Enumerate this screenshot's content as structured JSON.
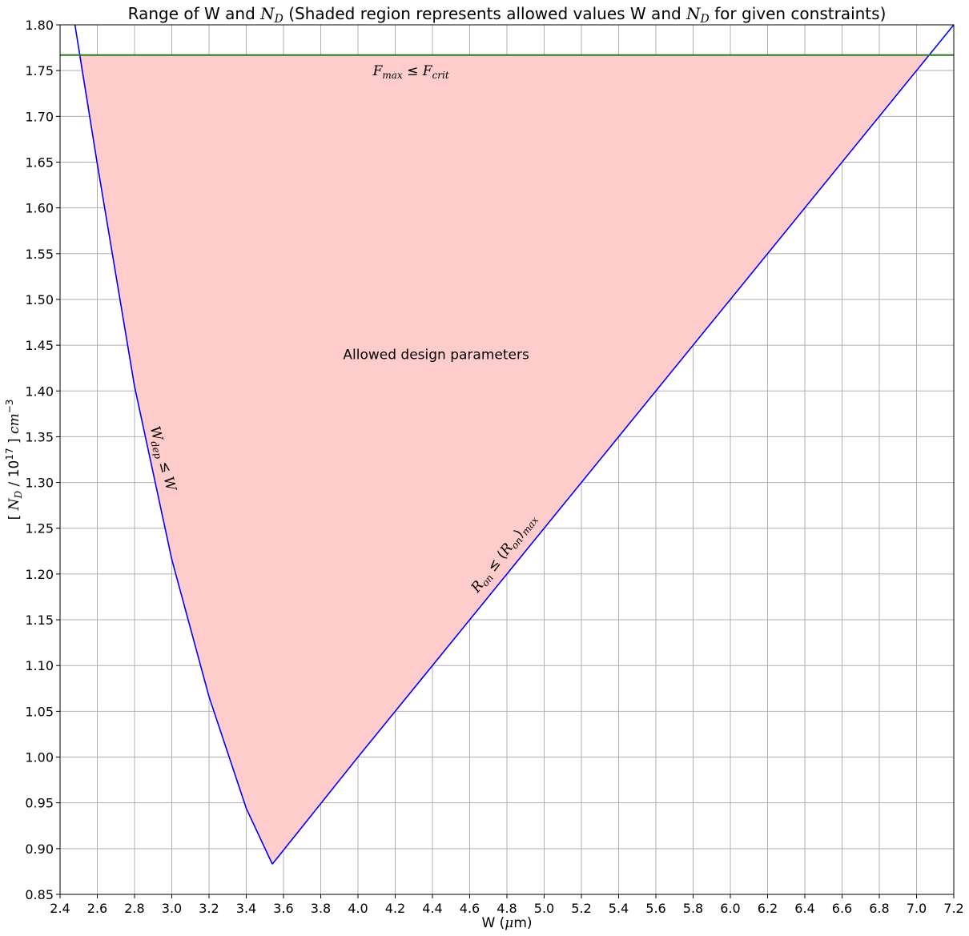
{
  "chart_data": {
    "type": "line",
    "title": {
      "before": "Range of W and ",
      "sym1": "N",
      "sub1": "D",
      "middle": " (Shaded region represents allowed values W and ",
      "sym2": "N",
      "sub2": "D",
      "after": " for given constraints)"
    },
    "xlabel": {
      "text": "W (",
      "mu": "μ",
      "tail": "m)"
    },
    "ylabel": {
      "open": "[ ",
      "sym": "N",
      "sub": "D",
      "mid": " / 10",
      "sup": "17",
      "close": " ] ",
      "unit": "cm",
      "unit_sup": "−3"
    },
    "xlim": [
      2.4,
      7.2
    ],
    "ylim": [
      0.85,
      1.8
    ],
    "x_ticks": [
      "2.4",
      "2.6",
      "2.8",
      "3.0",
      "3.2",
      "3.4",
      "3.6",
      "3.8",
      "4.0",
      "4.2",
      "4.4",
      "4.6",
      "4.8",
      "5.0",
      "5.2",
      "5.4",
      "5.6",
      "5.8",
      "6.0",
      "6.2",
      "6.4",
      "6.6",
      "6.8",
      "7.0",
      "7.2"
    ],
    "y_ticks": [
      "0.85",
      "0.90",
      "0.95",
      "1.00",
      "1.05",
      "1.10",
      "1.15",
      "1.20",
      "1.25",
      "1.30",
      "1.35",
      "1.40",
      "1.45",
      "1.50",
      "1.55",
      "1.60",
      "1.65",
      "1.70",
      "1.75",
      "1.80"
    ],
    "grid": true,
    "colors": {
      "constraint": "#0000ff",
      "fmax": "#2e7d1e",
      "region": "#ffcccc"
    },
    "series": [
      {
        "key": "wdep",
        "x": [
          2.48,
          2.6,
          2.8,
          3.0,
          3.2,
          3.4,
          3.54
        ],
        "y": [
          1.8,
          1.648,
          1.405,
          1.216,
          1.066,
          0.944,
          0.883
        ]
      },
      {
        "key": "ron",
        "x": [
          3.54,
          4.0,
          5.0,
          6.0,
          7.0,
          7.2
        ],
        "y": [
          0.883,
          1.0,
          1.25,
          1.5,
          1.75,
          1.8
        ]
      },
      {
        "key": "fmax",
        "x": [
          2.4,
          7.2
        ],
        "y": [
          1.767,
          1.767
        ]
      }
    ],
    "region": {
      "x": [
        2.5,
        2.6,
        2.8,
        3.0,
        3.2,
        3.4,
        3.54,
        4.0,
        5.0,
        6.0,
        7.0,
        7.068
      ],
      "y": [
        1.767,
        1.648,
        1.405,
        1.216,
        1.066,
        0.944,
        0.883,
        1.0,
        1.25,
        1.5,
        1.75,
        1.767
      ]
    },
    "annotations": {
      "fmax": {
        "a": "F",
        "a_sub": "max",
        "op": " ≤ ",
        "b": "F",
        "b_sub": "crit",
        "x": 4.08,
        "y": 1.745
      },
      "region": {
        "text": "Allowed design parameters",
        "x": 3.92,
        "y": 1.435
      },
      "wdep": {
        "a": "W",
        "a_sub": "dep",
        "op": " ≤ ",
        "b": "W",
        "x": 2.93,
        "y": 1.325,
        "angle": 75
      },
      "ron": {
        "a": "R",
        "a_sub": "on",
        "op": " ≤ (",
        "b": "R",
        "b_sub": "on",
        "close": ")",
        "c_sub": "max",
        "x": 4.8,
        "y": 1.22,
        "angle": -52
      }
    }
  }
}
